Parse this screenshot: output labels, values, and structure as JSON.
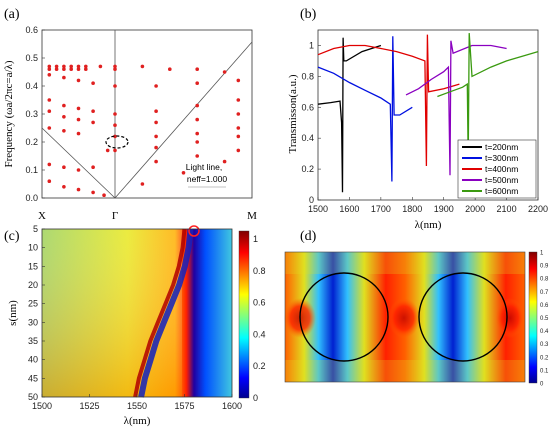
{
  "figure": {
    "panel_a": {
      "label": "(a)",
      "ylabel": "Frequency (ωa/2πc=a/λ)",
      "yticks": [
        "0.0",
        "0.1",
        "0.2",
        "0.3",
        "0.4",
        "0.5",
        "0.6"
      ],
      "xticks": [
        "X",
        "Γ",
        "M"
      ],
      "annotation_line1": "Light line,",
      "annotation_line2": "neff=1.000"
    },
    "panel_b": {
      "label": "(b)",
      "ylabel": "Transmisson(a.u.)",
      "xlabel": "λ(nm)",
      "xticks": [
        "1500",
        "1600",
        "1700",
        "1800",
        "1900",
        "2000",
        "2100",
        "2200"
      ],
      "yticks": [
        "0",
        "0.2",
        "0.4",
        "0.6",
        "0.8",
        "1"
      ],
      "legend": [
        "t=200nm",
        "t=300nm",
        "t=400nm",
        "t=500nm",
        "t=600nm"
      ]
    },
    "panel_c": {
      "label": "(c)",
      "ylabel": "s(nm)",
      "xlabel": "λ(nm)",
      "xticks": [
        "1500",
        "1525",
        "1550",
        "1575",
        "1600"
      ],
      "yticks": [
        "5",
        "10",
        "15",
        "20",
        "25",
        "30",
        "35",
        "40",
        "45",
        "50"
      ],
      "cbar_ticks": [
        "0",
        "0.2",
        "0.4",
        "0.6",
        "0.8",
        "1"
      ]
    },
    "panel_d": {
      "label": "(d)",
      "cbar_ticks": [
        "0",
        "0.1",
        "0.2",
        "0.3",
        "0.4",
        "0.5",
        "0.6",
        "0.7",
        "0.8",
        "0.9",
        "1"
      ]
    }
  },
  "chart_data": [
    {
      "type": "scatter",
      "title": "(a)",
      "ylabel": "Frequency (ωa/2πc=a/λ)",
      "categories": [
        "X",
        "Γ",
        "M"
      ],
      "ylim": [
        0,
        0.6
      ],
      "series": [
        {
          "name": "",
          "points": [
            [
              -0.9,
              0.47
            ],
            [
              -0.8,
              0.47
            ],
            [
              -0.7,
              0.47
            ],
            [
              -0.6,
              0.47
            ],
            [
              -0.5,
              0.47
            ],
            [
              -0.4,
              0.47
            ],
            [
              -0.2,
              0.47
            ],
            [
              0,
              0.47
            ],
            [
              0.2,
              0.47
            ],
            [
              0.4,
              0.46
            ],
            [
              0.6,
              0.46
            ],
            [
              0.8,
              0.45
            ],
            [
              -0.9,
              0.46
            ],
            [
              -0.8,
              0.46
            ],
            [
              -0.7,
              0.46
            ],
            [
              -0.6,
              0.46
            ],
            [
              -0.5,
              0.46
            ],
            [
              -0.4,
              0.46
            ],
            [
              0,
              0.46
            ],
            [
              -0.9,
              0.44
            ],
            [
              -0.7,
              0.43
            ],
            [
              -0.5,
              0.42
            ],
            [
              -0.3,
              0.41
            ],
            [
              0,
              0.4
            ],
            [
              0.3,
              0.4
            ],
            [
              0.6,
              0.41
            ],
            [
              0.9,
              0.42
            ],
            [
              -0.9,
              0.35
            ],
            [
              -0.7,
              0.33
            ],
            [
              -0.5,
              0.32
            ],
            [
              -0.3,
              0.31
            ],
            [
              0,
              0.3
            ],
            [
              0.3,
              0.31
            ],
            [
              0.6,
              0.33
            ],
            [
              0.9,
              0.35
            ],
            [
              -0.9,
              0.31
            ],
            [
              -0.7,
              0.29
            ],
            [
              -0.5,
              0.28
            ],
            [
              -0.3,
              0.27
            ],
            [
              0,
              0.26
            ],
            [
              0.3,
              0.27
            ],
            [
              0.6,
              0.28
            ],
            [
              0.9,
              0.3
            ],
            [
              -0.9,
              0.25
            ],
            [
              -0.7,
              0.24
            ],
            [
              -0.5,
              0.23
            ],
            [
              0,
              0.22
            ],
            [
              0.3,
              0.22
            ],
            [
              0.6,
              0.23
            ],
            [
              0.9,
              0.25
            ],
            [
              -0.1,
              0.17
            ],
            [
              0,
              0.17
            ],
            [
              0.3,
              0.18
            ],
            [
              0.6,
              0.2
            ],
            [
              0.9,
              0.22
            ],
            [
              -0.9,
              0.12
            ],
            [
              -0.7,
              0.11
            ],
            [
              -0.5,
              0.1
            ],
            [
              -0.3,
              0.11
            ],
            [
              -0.9,
              0.06
            ],
            [
              -0.7,
              0.04
            ],
            [
              -0.5,
              0.03
            ],
            [
              -0.3,
              0.02
            ],
            [
              -0.15,
              0.01
            ],
            [
              0.2,
              0.05
            ],
            [
              0.5,
              0.09
            ],
            [
              0.8,
              0.13
            ],
            [
              0.3,
              0.13
            ],
            [
              0.6,
              0.15
            ],
            [
              0.9,
              0.17
            ]
          ]
        }
      ]
    },
    {
      "type": "line",
      "title": "(b)",
      "xlabel": "λ(nm)",
      "ylabel": "Transmisson(a.u.)",
      "xlim": [
        1500,
        2200
      ],
      "ylim": [
        0,
        1.1
      ],
      "series": [
        {
          "name": "t=200nm",
          "points": [
            [
              1500,
              0.62
            ],
            [
              1540,
              0.63
            ],
            [
              1570,
              0.64
            ],
            [
              1575,
              0.5
            ],
            [
              1578,
              0.05
            ],
            [
              1580,
              1.05
            ],
            [
              1582,
              0.9
            ],
            [
              1590,
              0.9
            ],
            [
              1640,
              0.96
            ],
            [
              1700,
              1.0
            ]
          ]
        },
        {
          "name": "t=300nm",
          "points": [
            [
              1500,
              0.86
            ],
            [
              1550,
              0.82
            ],
            [
              1600,
              0.76
            ],
            [
              1650,
              0.71
            ],
            [
              1700,
              0.66
            ],
            [
              1730,
              0.62
            ],
            [
              1735,
              0.12
            ],
            [
              1738,
              1.06
            ],
            [
              1742,
              0.55
            ],
            [
              1760,
              0.55
            ],
            [
              1800,
              0.6
            ]
          ]
        },
        {
          "name": "t=400nm",
          "points": [
            [
              1500,
              0.94
            ],
            [
              1550,
              0.98
            ],
            [
              1600,
              1.0
            ],
            [
              1650,
              1.0
            ],
            [
              1700,
              0.98
            ],
            [
              1750,
              0.96
            ],
            [
              1800,
              0.93
            ],
            [
              1840,
              0.9
            ],
            [
              1845,
              0.22
            ],
            [
              1848,
              1.07
            ],
            [
              1852,
              0.7
            ],
            [
              1900,
              0.72
            ],
            [
              1950,
              0.75
            ]
          ]
        },
        {
          "name": "t=500nm",
          "points": [
            [
              1780,
              0.68
            ],
            [
              1820,
              0.72
            ],
            [
              1860,
              0.78
            ],
            [
              1900,
              0.83
            ],
            [
              1915,
              0.86
            ],
            [
              1920,
              0.16
            ],
            [
              1923,
              1.03
            ],
            [
              1930,
              0.95
            ],
            [
              1990,
              1.0
            ],
            [
              2050,
              1.0
            ],
            [
              2100,
              0.98
            ]
          ]
        },
        {
          "name": "t=600nm",
          "points": [
            [
              1880,
              0.67
            ],
            [
              1920,
              0.7
            ],
            [
              1960,
              0.73
            ],
            [
              1975,
              0.75
            ],
            [
              1978,
              0.25
            ],
            [
              1981,
              1.08
            ],
            [
              1990,
              0.8
            ],
            [
              2050,
              0.86
            ],
            [
              2100,
              0.9
            ],
            [
              2150,
              0.93
            ],
            [
              2200,
              0.96
            ]
          ]
        }
      ]
    },
    {
      "type": "heatmap",
      "title": "(c)",
      "xlabel": "λ(nm)",
      "ylabel": "s(nm)",
      "xlim": [
        1500,
        1600
      ],
      "ylim": [
        5,
        50
      ],
      "resonance_curve": [
        [
          1575,
          5
        ],
        [
          1574,
          10
        ],
        [
          1572,
          15
        ],
        [
          1569,
          20
        ],
        [
          1565,
          25
        ],
        [
          1561,
          30
        ],
        [
          1557,
          35
        ],
        [
          1554,
          40
        ],
        [
          1551,
          45
        ],
        [
          1549,
          50
        ]
      ],
      "colorbar": [
        0,
        1.05
      ]
    },
    {
      "type": "heatmap",
      "title": "(d)",
      "colorbar": [
        0,
        1
      ],
      "description_values": "field intensity map with two circular air holes"
    }
  ]
}
